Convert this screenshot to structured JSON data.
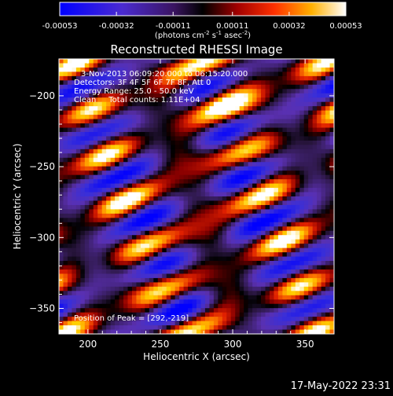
{
  "chart_data": {
    "type": "heatmap",
    "title": "Reconstructed RHESSI Image",
    "xlabel": "Heliocentric X (arcsec)",
    "ylabel": "Heliocentric Y (arcsec)",
    "x_range": [
      180,
      370
    ],
    "y_range": [
      -368,
      -174
    ],
    "x_ticks": [
      200,
      250,
      300,
      350
    ],
    "y_ticks": [
      -200,
      -250,
      -300,
      -350
    ],
    "colorbar": {
      "range": [
        -0.00053,
        0.00053
      ],
      "tick_labels": [
        "-0.00053",
        "-0.00032",
        "-0.00011",
        "0.00011",
        "0.00032",
        "0.00053"
      ],
      "unit_prefix": "(photons cm",
      "unit_sup1": "-2",
      "unit_mid1": " s",
      "unit_sup2": "-1",
      "unit_mid2": " asec",
      "unit_sup3": "-2",
      "unit_suffix": ")"
    },
    "info": {
      "time_range": "3-Nov-2013 06:09:20.000 to 06:15:20.000",
      "detectors": "Detectors: 3F 4F 5F 6F 7F 8F, Att 0",
      "energy": "Energy Range: 25.0 - 50.0 keV",
      "method": "Clean     Total counts: 1.11E+04"
    },
    "peak_label": "Position of Peak = [292,-219]",
    "peak_position": [
      292,
      -219
    ],
    "grid": false,
    "colormap": [
      "#0000ff",
      "#3a2fd8",
      "#5a30b0",
      "#2a1640",
      "#000000",
      "#8a0000",
      "#e02000",
      "#ff8000",
      "#ffd000",
      "#ffffff"
    ]
  },
  "footer": {
    "timestamp": "17-May-2022 23:31"
  }
}
